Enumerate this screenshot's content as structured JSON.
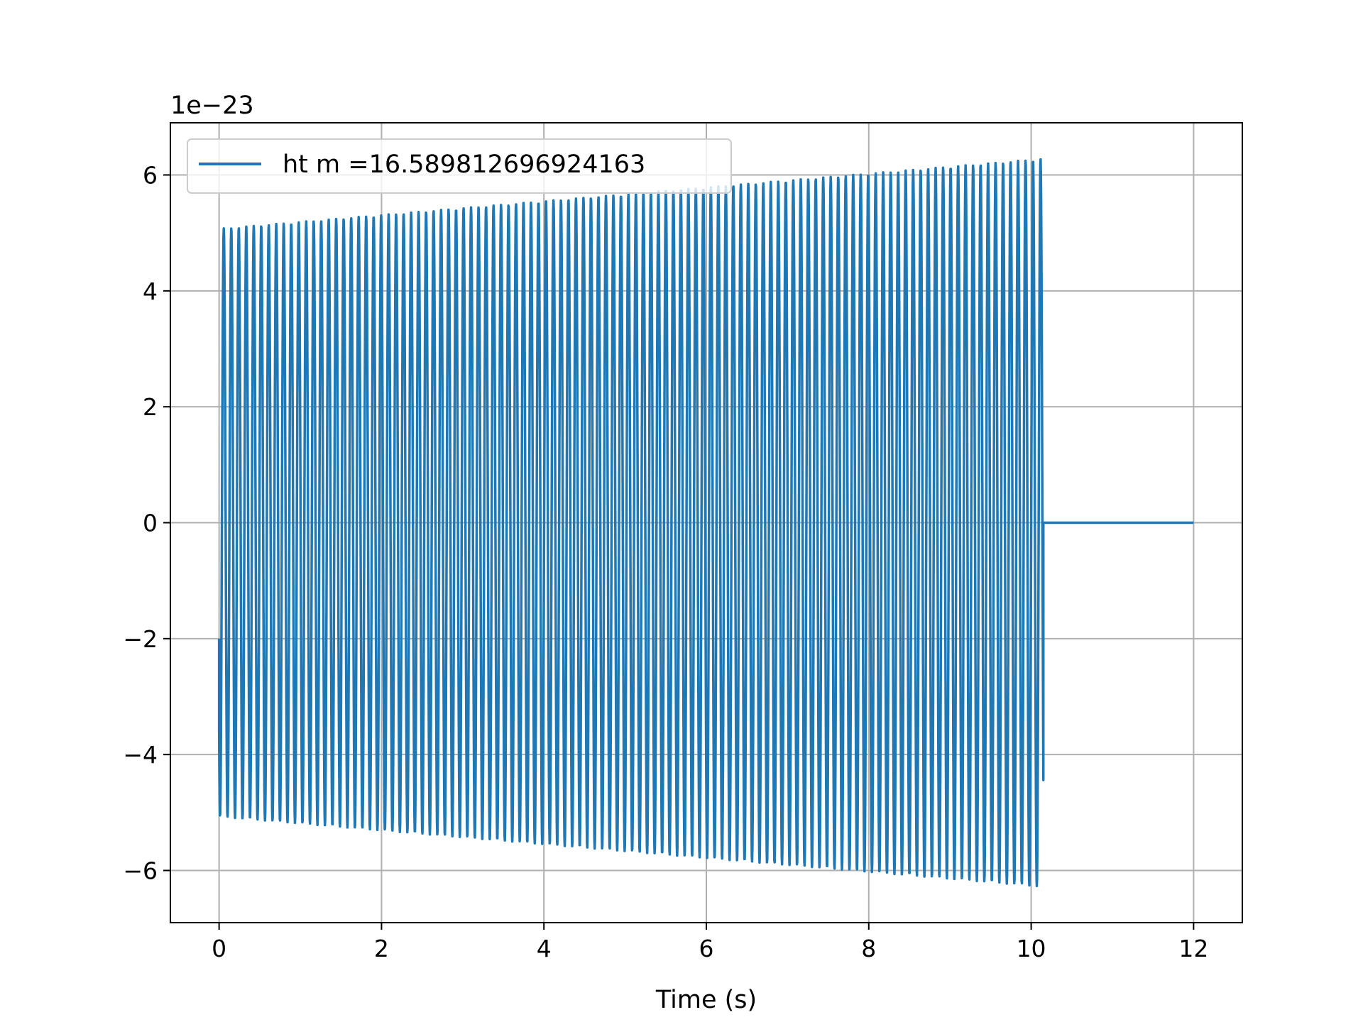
{
  "chart_data": {
    "type": "line",
    "xlabel": "Time (s)",
    "ylabel": "",
    "title": "",
    "y_offset_label": "1e−23",
    "xlim": [
      -0.6,
      12.6
    ],
    "ylim": [
      -6.9,
      6.9
    ],
    "xticks": [
      0,
      2,
      4,
      6,
      8,
      10,
      12
    ],
    "xtick_labels": [
      "0",
      "2",
      "4",
      "6",
      "8",
      "10",
      "12"
    ],
    "yticks": [
      -6,
      -4,
      -2,
      0,
      2,
      4,
      6
    ],
    "ytick_labels": [
      "−6",
      "−4",
      "−2",
      "0",
      "2",
      "4",
      "6"
    ],
    "grid": true,
    "legend_position": "upper-left",
    "series": [
      {
        "name": "ht m =16.589812696924163",
        "color": "#1f77b4",
        "signal": {
          "kind": "oscillation",
          "t_start": 0,
          "t_end": 10.15,
          "cycles": 110,
          "amplitude_start": 5.07,
          "amplitude_end": 6.28,
          "initial_value": -2.0,
          "flat_value": 0,
          "flat_end": 12.0
        }
      }
    ]
  }
}
